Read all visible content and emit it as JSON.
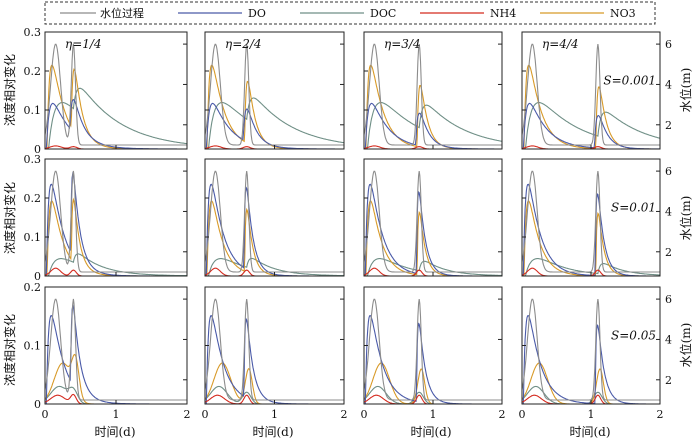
{
  "chart_data": {
    "type": "line",
    "legend": {
      "placement": "top",
      "entries": [
        {
          "name": "水位过程",
          "color": "#8c8c8c"
        },
        {
          "name": "DO",
          "color": "#4a5aa8"
        },
        {
          "name": "DOC",
          "color": "#6f8f86"
        },
        {
          "name": "NH4",
          "color": "#d42a1e"
        },
        {
          "name": "NO3",
          "color": "#d89a28"
        }
      ]
    },
    "xlabel": "时间(d)",
    "ylabel_left": "浓度相对变化",
    "ylabel_right": "水位(m)",
    "xlim": [
      0,
      2
    ],
    "xticks": [
      "0",
      "1",
      "2"
    ],
    "eta_labels": [
      "η=1/4",
      "η=2/4",
      "η=3/4",
      "η=4/4"
    ],
    "rows": [
      {
        "s_label": "S=0.001",
        "ylim": [
          0,
          0.3
        ],
        "yticks": [
          "0",
          "0.1",
          "0.2",
          "0.3"
        ],
        "right_ylim": [
          0.8,
          6.6
        ],
        "right_yticks": [
          "2",
          "4",
          "6"
        ]
      },
      {
        "s_label": "S=0.01",
        "ylim": [
          0,
          0.3
        ],
        "yticks": [
          "0",
          "0.1",
          "0.2",
          "0.3"
        ],
        "right_ylim": [
          0.8,
          6.6
        ],
        "right_yticks": [
          "2",
          "4",
          "6"
        ]
      },
      {
        "s_label": "S=0.05",
        "ylim": [
          0,
          0.2
        ],
        "yticks": [
          "0",
          "0.1",
          "0.2"
        ],
        "right_ylim": [
          0.8,
          6.6
        ],
        "right_yticks": [
          "2",
          "4",
          "6"
        ]
      }
    ],
    "water_level": {
      "peak1_day": 0.15,
      "second_peak_day_by_column": [
        0.4,
        0.6,
        0.8,
        1.1
      ],
      "peak_m": 6.0,
      "base_m": 1.0
    }
  }
}
